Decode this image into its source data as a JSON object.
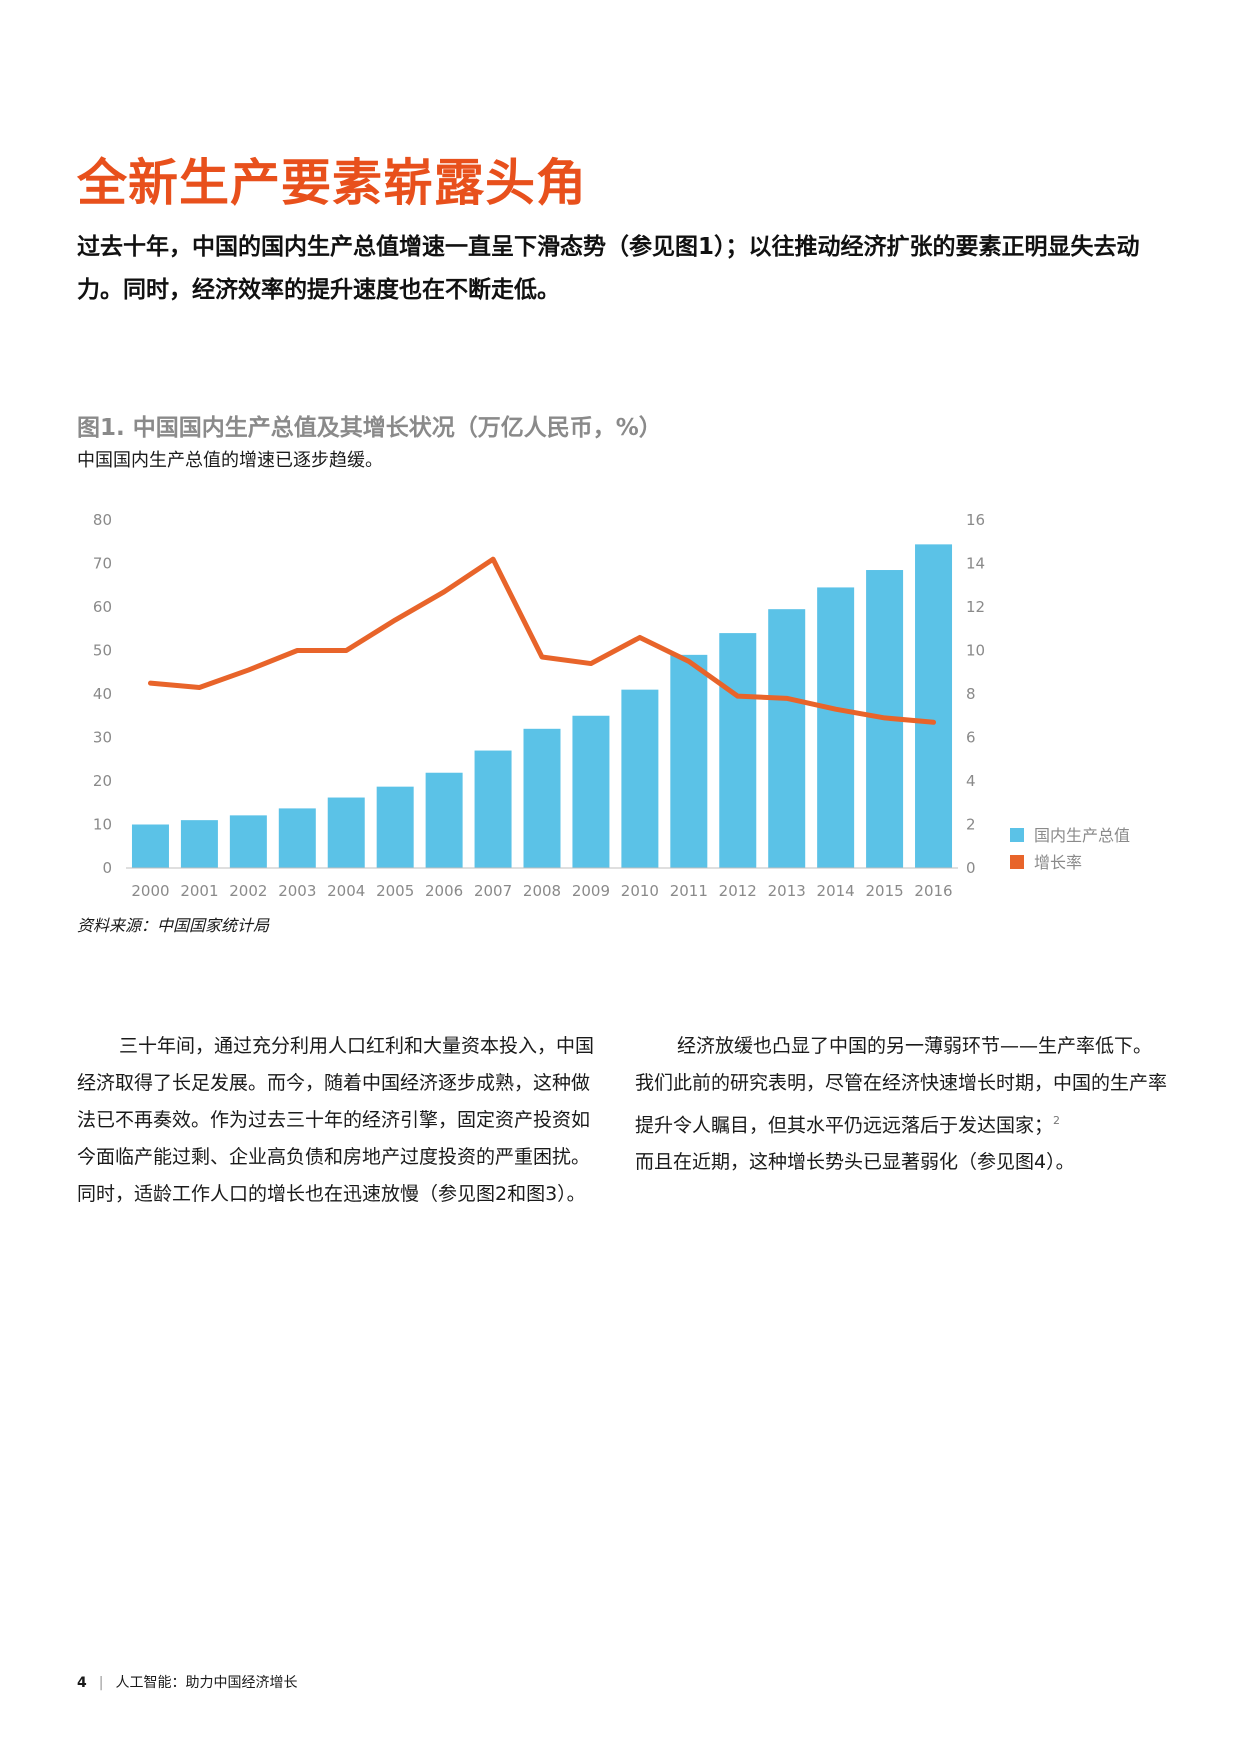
{
  "headline": "全新生产要素崭露头角",
  "lead": "过去十年，中国的国内生产总值增速一直呈下滑态势（参见图1）；以往推动经济扩张的要素正明显失去动力。同时，经济效率的提升速度也在不断走低。",
  "figure": {
    "title": "图1. 中国国内生产总值及其增长状况（万亿人民币，%）",
    "subtitle": "中国国内生产总值的增速已逐步趋缓。",
    "source": "资料来源：中国国家统计局"
  },
  "chart_data": {
    "type": "bar",
    "categories": [
      "2000",
      "2001",
      "2002",
      "2003",
      "2004",
      "2005",
      "2006",
      "2007",
      "2008",
      "2009",
      "2010",
      "2011",
      "2012",
      "2013",
      "2014",
      "2015",
      "2016"
    ],
    "series": [
      {
        "name": "国内生产总值",
        "type": "bar",
        "axis": "left",
        "color": "#5bc2e7",
        "values": [
          10.0,
          11.0,
          12.1,
          13.7,
          16.2,
          18.7,
          21.9,
          27.0,
          32.0,
          35.0,
          41.0,
          49.0,
          54.0,
          59.5,
          64.5,
          68.5,
          74.4
        ]
      },
      {
        "name": "增长率",
        "type": "line",
        "axis": "right",
        "color": "#e8642a",
        "values": [
          8.5,
          8.3,
          9.1,
          10.0,
          10.0,
          11.4,
          12.7,
          14.2,
          9.7,
          9.4,
          10.6,
          9.5,
          7.9,
          7.8,
          7.3,
          6.9,
          6.7
        ]
      }
    ],
    "y_left": {
      "min": 0,
      "max": 80,
      "ticks": [
        "0",
        "10",
        "20",
        "30",
        "40",
        "50",
        "60",
        "70",
        "80"
      ]
    },
    "y_right": {
      "min": 0,
      "max": 16,
      "ticks": [
        "0",
        "2",
        "4",
        "6",
        "8",
        "10",
        "12",
        "14",
        "16"
      ]
    },
    "legend_position": "right"
  },
  "columns": {
    "left": "三十年间，通过充分利用人口红利和大量资本投入，中国经济取得了长足发展。而今，随着中国经济逐步成熟，这种做法已不再奏效。作为过去三十年的经济引擎，固定资产投资如今面临产能过剩、企业高负债和房地产过度投资的严重困扰。同时，适龄工作人口的增长也在迅速放慢（参见图2和图3）。",
    "right": "经济放缓也凸显了中国的另一薄弱环节——生产率低下。我们此前的研究表明，尽管在经济快速增长时期，中国的生产率提升令人瞩目，但其水平仍远远落后于发达国家；",
    "right_note": "2",
    "right_tail": "而且在近期，这种增长势头已显著弱化（参见图4）。"
  },
  "footer": {
    "page_number": "4",
    "separator": "|",
    "title": "人工智能：助力中国经济增长"
  }
}
